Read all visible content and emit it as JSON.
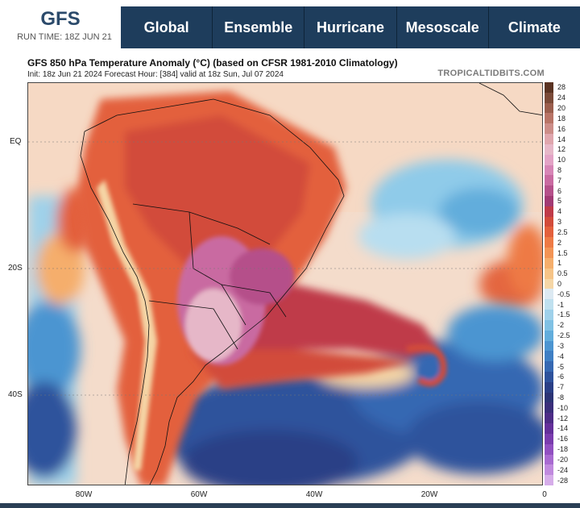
{
  "header": {
    "logo": "GFS",
    "run_time": "RUN TIME: 18Z JUN 21",
    "nav": [
      "Global",
      "Ensemble",
      "Hurricane",
      "Mesoscale",
      "Climate"
    ]
  },
  "map": {
    "title": "GFS 850 hPa Temperature Anomaly (°C) (based on CFSR 1981-2010 Climatology)",
    "subtitle": "Init: 18z Jun 21 2024   Forecast Hour: [384]   valid at 18z Sun, Jul 07 2024",
    "site": "TROPICALTIDBITS.COM",
    "lat_labels": [
      "EQ",
      "20S",
      "40S"
    ],
    "lon_labels": [
      "80W",
      "60W",
      "40W",
      "20W",
      "0"
    ],
    "colorbar_labels": [
      "28",
      "24",
      "20",
      "18",
      "16",
      "14",
      "12",
      "10",
      "8",
      "7",
      "6",
      "5",
      "4",
      "3",
      "2.5",
      "2",
      "1.5",
      "1",
      "0.5",
      "0",
      "-0.5",
      "-1",
      "-1.5",
      "-2",
      "-2.5",
      "-3",
      "-4",
      "-5",
      "-6",
      "-7",
      "-8",
      "-10",
      "-12",
      "-14",
      "-16",
      "-18",
      "-20",
      "-24",
      "-28"
    ],
    "colorbar_colors": [
      "#5a3322",
      "#7a4a38",
      "#9a5e4d",
      "#b87466",
      "#cc8d88",
      "#dfa6ad",
      "#e6b7c8",
      "#e3a3c6",
      "#d785b6",
      "#c96aa1",
      "#b5508a",
      "#a23a74",
      "#bf3a48",
      "#d24b3a",
      "#e3603c",
      "#ee7a45",
      "#f39455",
      "#f5ae6c",
      "#f6c487",
      "#f5d6a6",
      "#dce9f2",
      "#bfe0ef",
      "#9fd1ea",
      "#80c1e4",
      "#62addc",
      "#4c95d1",
      "#3f7fc4",
      "#3668b2",
      "#2e529c",
      "#2a3f86",
      "#2c3475",
      "#3a2e7a",
      "#4d2c86",
      "#64309a",
      "#7a3cae",
      "#9150c1",
      "#a86ad1",
      "#c08ade",
      "#d6ade9"
    ]
  }
}
